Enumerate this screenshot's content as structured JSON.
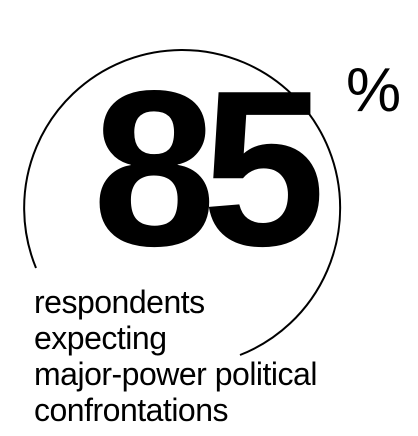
{
  "stat": {
    "value": "85",
    "unit": "%",
    "caption_lines": [
      "respondents",
      "expecting",
      "major-power political",
      "confrontations"
    ]
  }
}
